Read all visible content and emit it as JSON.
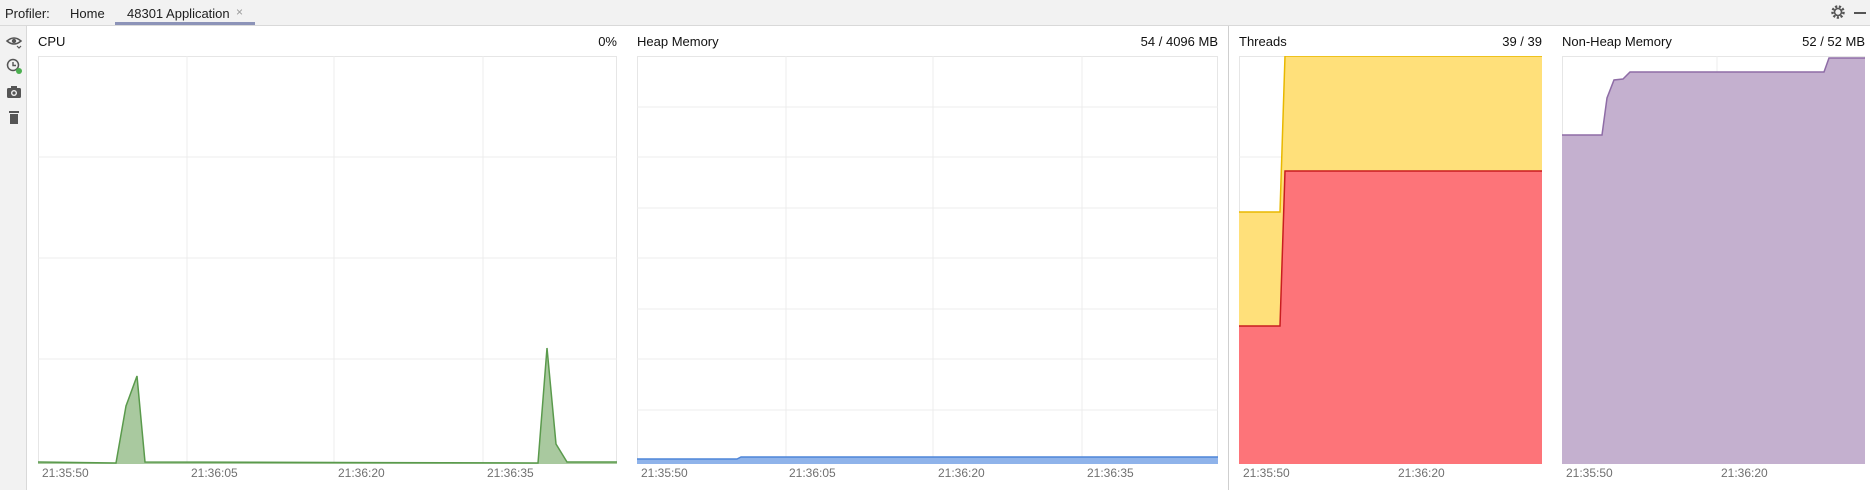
{
  "toolbar": {
    "profiler_label": "Profiler:",
    "tabs": [
      {
        "label": "Home"
      },
      {
        "label": "48301 Application"
      }
    ],
    "close_glyph": "×"
  },
  "tools": [
    "eye-icon",
    "record-icon",
    "camera-icon",
    "trash-icon"
  ],
  "panels": {
    "cpu": {
      "title": "CPU",
      "value": "0%",
      "ticks": [
        "21:35:50",
        "21:36:05",
        "21:36:20",
        "21:36:35"
      ],
      "color": "#5a9a4c",
      "fill": "#a9c99f"
    },
    "heap": {
      "title": "Heap Memory",
      "value": "54 / 4096 MB",
      "ticks": [
        "21:35:50",
        "21:36:05",
        "21:36:20",
        "21:36:35"
      ],
      "color": "#4f86d8",
      "fill": "#8fb3ea"
    },
    "threads": {
      "title": "Threads",
      "value": "39 / 39",
      "ticks": [
        "21:35:50",
        "21:36:20"
      ],
      "total_color": "#ffe07a",
      "total_line": "#e8b800",
      "running_color": "#fd7479",
      "running_line": "#c81d20"
    },
    "nonheap": {
      "title": "Non-Heap Memory",
      "value": "52 / 52 MB",
      "ticks": [
        "21:35:50",
        "21:36:20"
      ],
      "color": "#8e6ca6",
      "fill": "#c4b0cf"
    }
  }
}
